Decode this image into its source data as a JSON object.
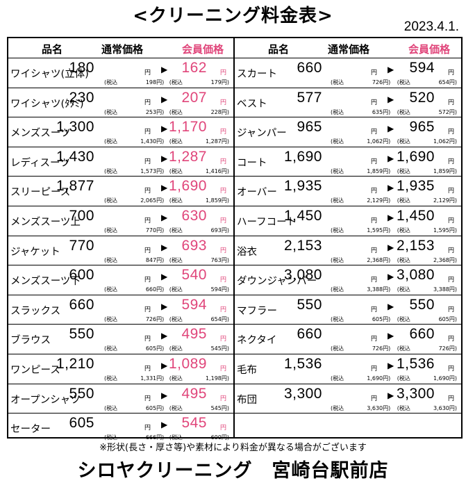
{
  "title": "<クリーニング料金表>",
  "date": "2023.4.1.",
  "headers": {
    "name": "品名",
    "regular": "通常価格",
    "member": "会員価格"
  },
  "yen": "円",
  "arrow": "▶",
  "tax_label": "(税込",
  "left_items": [
    {
      "name": "ワイシャツ(立体)",
      "regular": "180",
      "regular_tax": "198",
      "member": "162",
      "member_tax": "179"
    },
    {
      "name": "ワイシャツ(ﾀﾀﾐ)",
      "regular": "230",
      "regular_tax": "253",
      "member": "207",
      "member_tax": "228"
    },
    {
      "name": "メンズスーツ",
      "regular": "1,300",
      "regular_tax": "1,430",
      "member": "1,170",
      "member_tax": "1,287"
    },
    {
      "name": "レディスーツ",
      "regular": "1,430",
      "regular_tax": "1,573",
      "member": "1,287",
      "member_tax": "1,416"
    },
    {
      "name": "スリーピース",
      "regular": "1,877",
      "regular_tax": "2,065",
      "member": "1,690",
      "member_tax": "1,859"
    },
    {
      "name": "メンズスーツ上",
      "regular": "700",
      "regular_tax": "770",
      "member": "630",
      "member_tax": "693"
    },
    {
      "name": "ジャケット",
      "regular": "770",
      "regular_tax": "847",
      "member": "693",
      "member_tax": "763"
    },
    {
      "name": "メンズスーツ下",
      "regular": "600",
      "regular_tax": "660",
      "member": "540",
      "member_tax": "594"
    },
    {
      "name": "スラックス",
      "regular": "660",
      "regular_tax": "726",
      "member": "594",
      "member_tax": "654"
    },
    {
      "name": "ブラウス",
      "regular": "550",
      "regular_tax": "605",
      "member": "495",
      "member_tax": "545"
    },
    {
      "name": "ワンピース",
      "regular": "1,210",
      "regular_tax": "1,331",
      "member": "1,089",
      "member_tax": "1,198"
    },
    {
      "name": "オープンシャツ",
      "regular": "550",
      "regular_tax": "605",
      "member": "495",
      "member_tax": "545"
    },
    {
      "name": "セーター",
      "regular": "605",
      "regular_tax": "666",
      "member": "545",
      "member_tax": "600"
    }
  ],
  "right_items": [
    {
      "name": "スカート",
      "regular": "660",
      "regular_tax": "726",
      "member": "594",
      "member_tax": "654"
    },
    {
      "name": "ベスト",
      "regular": "577",
      "regular_tax": "635",
      "member": "520",
      "member_tax": "572"
    },
    {
      "name": "ジャンパー",
      "regular": "965",
      "regular_tax": "1,062",
      "member": "965",
      "member_tax": "1,062"
    },
    {
      "name": "コート",
      "regular": "1,690",
      "regular_tax": "1,859",
      "member": "1,690",
      "member_tax": "1,859"
    },
    {
      "name": "オーバー",
      "regular": "1,935",
      "regular_tax": "2,129",
      "member": "1,935",
      "member_tax": "2,129"
    },
    {
      "name": "ハーフコート",
      "regular": "1,450",
      "regular_tax": "1,595",
      "member": "1,450",
      "member_tax": "1,595"
    },
    {
      "name": "浴衣",
      "regular": "2,153",
      "regular_tax": "2,368",
      "member": "2,153",
      "member_tax": "2,368"
    },
    {
      "name": "ダウンジャンパー",
      "regular": "3,080",
      "regular_tax": "3,388",
      "member": "3,080",
      "member_tax": "3,388"
    },
    {
      "name": "マフラー",
      "regular": "550",
      "regular_tax": "605",
      "member": "550",
      "member_tax": "605"
    },
    {
      "name": "ネクタイ",
      "regular": "660",
      "regular_tax": "726",
      "member": "660",
      "member_tax": "726"
    },
    {
      "name": "毛布",
      "regular": "1,536",
      "regular_tax": "1,690",
      "member": "1,536",
      "member_tax": "1,690"
    },
    {
      "name": "布団",
      "regular": "3,300",
      "regular_tax": "3,630",
      "member": "3,300",
      "member_tax": "3,630"
    }
  ],
  "note": "※形状(長さ・厚さ等)や素材により料金が異なる場合がございます",
  "shop_name": "シロヤクリーニング　宮崎台駅前店",
  "colors": {
    "member_price": "#e0457a"
  }
}
